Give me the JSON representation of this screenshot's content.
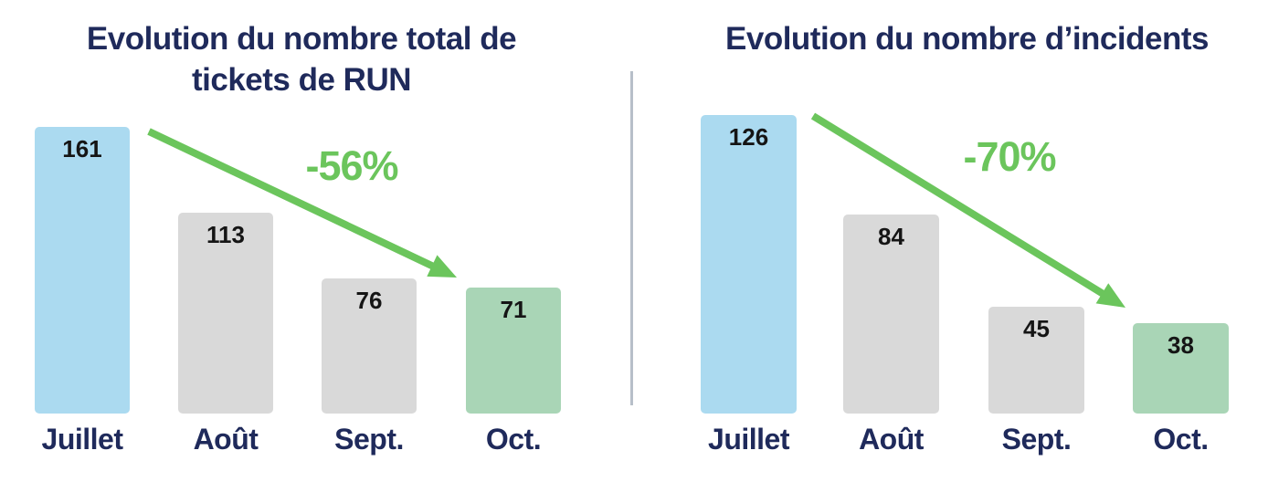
{
  "chart_data": [
    {
      "type": "bar",
      "title": "Evolution du nombre total de tickets de RUN",
      "title_lines": [
        "Evolution du nombre total de",
        "tickets de RUN"
      ],
      "categories": [
        "Juillet",
        "Août",
        "Sept.",
        "Oct."
      ],
      "values": [
        161,
        113,
        76,
        71
      ],
      "value_labels": [
        "161",
        "113",
        "76",
        "71"
      ],
      "bar_colors": [
        "#ABDAF0",
        "#D9D9D9",
        "#D9D9D9",
        "#A9D5B6"
      ],
      "annotation": {
        "text": "-56%",
        "kind": "decline-arrow",
        "color": "#6BC55C"
      },
      "ylim": [
        0,
        161
      ],
      "axes": "hidden",
      "grid": false,
      "legend": "none",
      "value_label_position": "inside-top"
    },
    {
      "type": "bar",
      "title": "Evolution du nombre d’incidents",
      "title_lines": [
        "Evolution du nombre d’incidents"
      ],
      "categories": [
        "Juillet",
        "Août",
        "Sept.",
        "Oct."
      ],
      "values": [
        126,
        84,
        45,
        38
      ],
      "value_labels": [
        "126",
        "84",
        "45",
        "38"
      ],
      "bar_colors": [
        "#ABDAF0",
        "#D9D9D9",
        "#D9D9D9",
        "#A9D5B6"
      ],
      "annotation": {
        "text": "-70%",
        "kind": "decline-arrow",
        "color": "#6BC55C"
      },
      "ylim": [
        0,
        126
      ],
      "axes": "hidden",
      "grid": false,
      "legend": "none",
      "value_label_position": "inside-top"
    }
  ],
  "colors": {
    "background": "#FFFFFF",
    "title_text": "#1F2A5B",
    "category_text": "#1F2A5B",
    "value_text": "#151515",
    "arrow_green": "#6BC55C",
    "divider": "#B7BFC9"
  }
}
